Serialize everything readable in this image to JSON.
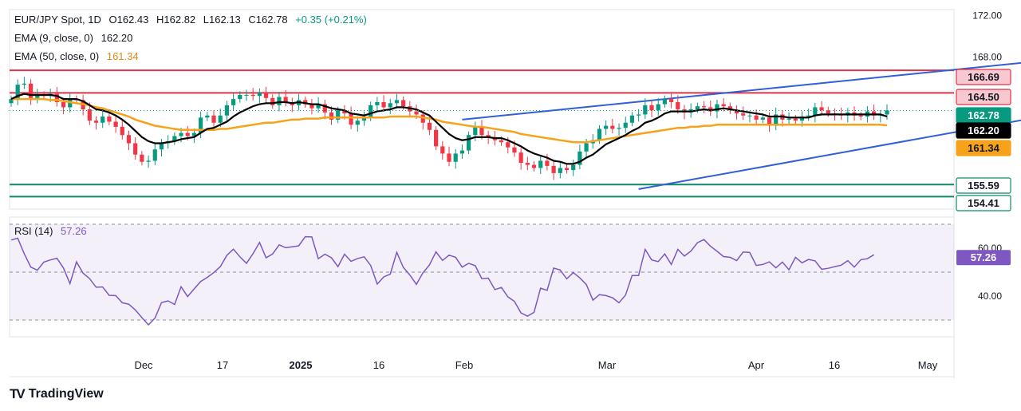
{
  "header": {
    "symbol": "EUR/JPY Spot, 1D",
    "open": "O162.43",
    "high": "H162.82",
    "low": "L162.13",
    "close": "C162.78",
    "change": "+0.35 (+0.21%)",
    "ema9_label": "EMA (9, close, 0)",
    "ema9_value": "162.20",
    "ema50_label": "EMA (50, close, 0)",
    "ema50_value": "161.34",
    "rsi_label": "RSI (14)",
    "rsi_value": "57.26"
  },
  "brand": {
    "name": "TradingView",
    "logo_icon": "tradingview-logo-icon"
  },
  "colors": {
    "up": "#089981",
    "down": "#f23645",
    "ema9": "#000000",
    "ema50": "#f7a21b",
    "channel": "#2f5fd9",
    "resistance": "#e0334a",
    "support": "#0e8a6a",
    "rsi": "#7e57c2"
  },
  "chart_data": [
    {
      "type": "candlestick",
      "ylim": [
        153.2,
        172.6
      ],
      "y_ticks": [
        "172.00",
        "168.00"
      ],
      "x_ticks": [
        "Dec",
        "17",
        "2025",
        "16",
        "Feb",
        "Mar",
        "Apr",
        "16",
        "May"
      ],
      "price_labels": [
        {
          "value": 166.69,
          "label": "166.69",
          "role": "resistance"
        },
        {
          "value": 164.5,
          "label": "164.50",
          "role": "resistance"
        },
        {
          "value": 162.78,
          "label": "162.78",
          "role": "last-price"
        },
        {
          "value": 162.2,
          "label": "162.20",
          "role": "ema9"
        },
        {
          "value": 161.34,
          "label": "161.34",
          "role": "ema50"
        },
        {
          "value": 155.59,
          "label": "155.59",
          "role": "support"
        },
        {
          "value": 154.41,
          "label": "154.41",
          "role": "support"
        }
      ],
      "closes": [
        163.9,
        165.3,
        165.4,
        164.0,
        164.3,
        164.2,
        164.4,
        163.6,
        163.1,
        163.9,
        163.8,
        162.9,
        161.8,
        161.6,
        162.2,
        161.7,
        161.2,
        160.4,
        159.6,
        158.5,
        157.8,
        157.9,
        159.0,
        159.6,
        159.8,
        160.3,
        160.6,
        160.3,
        160.6,
        162.1,
        162.3,
        161.6,
        162.3,
        163.3,
        163.9,
        164.3,
        164.3,
        164.2,
        164.5,
        164.0,
        163.3,
        164.1,
        163.6,
        163.3,
        163.8,
        163.4,
        163.0,
        163.4,
        162.6,
        161.9,
        162.8,
        162.5,
        161.4,
        161.8,
        162.1,
        163.3,
        163.6,
        163.1,
        163.5,
        163.8,
        163.2,
        162.7,
        162.4,
        161.6,
        160.9,
        159.3,
        158.6,
        157.8,
        158.6,
        158.9,
        160.4,
        161.2,
        160.4,
        160.2,
        159.9,
        159.7,
        159.2,
        158.7,
        157.7,
        157.5,
        157.2,
        157.9,
        157.4,
        156.7,
        157.2,
        157.0,
        157.5,
        158.8,
        159.6,
        159.9,
        161.0,
        161.3,
        161.0,
        161.1,
        161.6,
        162.3,
        162.4,
        163.3,
        162.8,
        163.4,
        163.9,
        163.6,
        162.9,
        162.6,
        162.9,
        163.2,
        163.1,
        162.7,
        163.4,
        163.2,
        162.8,
        162.5,
        162.3,
        162.3,
        161.9,
        162.1,
        161.3,
        162.4,
        161.9,
        162.0,
        161.8,
        162.2,
        162.3,
        163.1,
        162.8,
        162.5,
        162.4,
        162.3,
        162.6,
        162.3,
        162.2,
        162.7,
        162.3,
        162.4,
        162.8
      ],
      "ema9": [
        163.9,
        164.2,
        164.4,
        164.3,
        164.3,
        164.3,
        164.3,
        164.2,
        163.9,
        163.9,
        163.9,
        163.7,
        163.3,
        162.9,
        162.8,
        162.6,
        162.3,
        161.9,
        161.4,
        160.8,
        160.2,
        159.8,
        159.6,
        159.6,
        159.7,
        159.8,
        160.0,
        160.1,
        160.2,
        160.6,
        161.0,
        161.1,
        161.4,
        161.7,
        162.2,
        162.6,
        162.9,
        163.2,
        163.4,
        163.5,
        163.5,
        163.6,
        163.6,
        163.5,
        163.6,
        163.5,
        163.4,
        163.4,
        163.2,
        163.0,
        162.9,
        162.8,
        162.5,
        162.4,
        162.3,
        162.5,
        162.7,
        162.8,
        162.9,
        163.1,
        163.1,
        163.0,
        162.9,
        162.6,
        162.3,
        161.7,
        161.1,
        160.5,
        160.1,
        159.9,
        160.0,
        160.2,
        160.2,
        160.2,
        160.1,
        160.1,
        159.9,
        159.6,
        159.3,
        158.9,
        158.6,
        158.4,
        158.2,
        157.9,
        157.8,
        157.6,
        157.6,
        157.8,
        158.2,
        158.5,
        159.0,
        159.5,
        159.8,
        160.1,
        160.4,
        160.8,
        161.1,
        161.6,
        161.8,
        162.1,
        162.5,
        162.7,
        162.7,
        162.7,
        162.7,
        162.8,
        162.9,
        162.8,
        162.9,
        163.0,
        162.9,
        162.8,
        162.7,
        162.6,
        162.5,
        162.4,
        162.2,
        162.2,
        162.2,
        162.1,
        162.1,
        162.1,
        162.1,
        162.3,
        162.4,
        162.4,
        162.4,
        162.4,
        162.4,
        162.4,
        162.4,
        162.4,
        162.4,
        162.4,
        162.2
      ],
      "ema50": [
        163.9,
        163.9,
        163.9,
        163.9,
        163.9,
        163.9,
        163.8,
        163.8,
        163.7,
        163.6,
        163.5,
        163.4,
        163.3,
        163.1,
        163.0,
        162.8,
        162.6,
        162.4,
        162.2,
        161.9,
        161.7,
        161.5,
        161.3,
        161.2,
        161.1,
        161.0,
        160.9,
        160.9,
        160.9,
        160.9,
        160.9,
        160.9,
        161.0,
        161.0,
        161.1,
        161.2,
        161.3,
        161.4,
        161.5,
        161.6,
        161.6,
        161.7,
        161.8,
        161.9,
        161.9,
        162.0,
        162.0,
        162.0,
        162.1,
        162.1,
        162.1,
        162.1,
        162.1,
        162.1,
        162.1,
        162.1,
        162.1,
        162.1,
        162.2,
        162.2,
        162.2,
        162.2,
        162.2,
        162.1,
        162.0,
        161.9,
        161.7,
        161.6,
        161.5,
        161.4,
        161.3,
        161.2,
        161.2,
        161.1,
        161.0,
        160.9,
        160.8,
        160.7,
        160.5,
        160.4,
        160.3,
        160.2,
        160.1,
        160.0,
        159.9,
        159.8,
        159.7,
        159.7,
        159.7,
        159.8,
        159.9,
        160.0,
        160.1,
        160.2,
        160.3,
        160.4,
        160.5,
        160.6,
        160.7,
        160.8,
        160.9,
        161.0,
        161.1,
        161.1,
        161.2,
        161.2,
        161.3,
        161.3,
        161.4,
        161.4,
        161.4,
        161.4,
        161.4,
        161.4,
        161.4,
        161.4,
        161.4,
        161.4,
        161.4,
        161.4,
        161.4,
        161.4,
        161.4,
        161.4,
        161.4,
        161.4,
        161.4,
        161.4,
        161.4,
        161.4,
        161.4,
        161.4,
        161.4,
        161.4,
        161.34
      ]
    },
    {
      "type": "line",
      "series": [
        {
          "name": "RSI (14)",
          "values": [
            63.4,
            64.2,
            57.7,
            52.1,
            50.8,
            54.2,
            55.1,
            55.8,
            51.7,
            45.2,
            54.3,
            49.6,
            47.3,
            43.7,
            43.8,
            40.3,
            40.2,
            37.2,
            36.6,
            34.2,
            31.0,
            28.0,
            30.8,
            37.3,
            38.0,
            36.5,
            43.9,
            39.8,
            43.0,
            46.1,
            47.8,
            49.8,
            52.3,
            57.0,
            59.6,
            56.4,
            53.7,
            57.7,
            62.4,
            56.0,
            57.6,
            61.4,
            60.2,
            60.6,
            61.0,
            64.8,
            64.7,
            55.6,
            57.5,
            56.0,
            52.3,
            57.5,
            54.5,
            55.7,
            56.4,
            52.8,
            45.0,
            48.0,
            49.2,
            58.3,
            52.0,
            48.8,
            44.9,
            49.7,
            53.0,
            58.5,
            54.9,
            57.1,
            56.2,
            52.1,
            53.7,
            52.7,
            47.3,
            47.5,
            42.7,
            43.6,
            39.7,
            37.8,
            33.0,
            31.6,
            33.2,
            43.3,
            42.4,
            51.7,
            50.9,
            47.2,
            49.8,
            47.6,
            44.8,
            38.3,
            40.6,
            40.2,
            39.3,
            37.2,
            40.4,
            48.6,
            48.6,
            59.5,
            55.1,
            54.4,
            57.6,
            53.2,
            59.5,
            56.7,
            58.8,
            62.3,
            63.6,
            60.8,
            58.7,
            56.5,
            56.2,
            54.8,
            58.4,
            58.2,
            52.8,
            53.2,
            54.3,
            51.8,
            54.2,
            51.0,
            56.2,
            53.9,
            55.3,
            54.7,
            51.2,
            51.6,
            52.3,
            52.9,
            54.8,
            52.1,
            55.2,
            55.6,
            57.26
          ]
        }
      ],
      "ylim": [
        23,
        73
      ],
      "y_ticks": [
        "60.00",
        "40.00"
      ],
      "bands": [
        70,
        50,
        30
      ]
    }
  ]
}
